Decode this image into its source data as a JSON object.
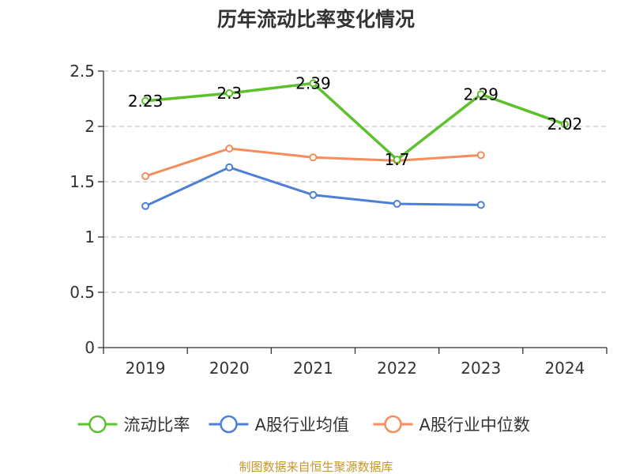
{
  "chart_data": {
    "type": "line",
    "title": "历年流动比率变化情况",
    "categories": [
      "2019",
      "2020",
      "2021",
      "2022",
      "2023",
      "2024"
    ],
    "ylim": [
      0,
      2.5
    ],
    "yticks": [
      "0",
      "0.5",
      "1",
      "1.5",
      "2",
      "2.5"
    ],
    "grid": true,
    "legend_position": "bottom",
    "series": [
      {
        "name": "流动比率",
        "color": "#5cc12d",
        "values": [
          2.23,
          2.3,
          2.39,
          1.7,
          2.29,
          2.02
        ],
        "labels": [
          "2.23",
          "2.3",
          "2.39",
          "1.7",
          "2.29",
          "2.02"
        ]
      },
      {
        "name": "A股行业均值",
        "color": "#4e7fd6",
        "values": [
          1.28,
          1.63,
          1.38,
          1.3,
          1.29,
          null
        ]
      },
      {
        "name": "A股行业中位数",
        "color": "#f48c5c",
        "values": [
          1.55,
          1.8,
          1.72,
          1.69,
          1.74,
          null
        ]
      }
    ]
  },
  "source": "制图数据来自恒生聚源数据库"
}
